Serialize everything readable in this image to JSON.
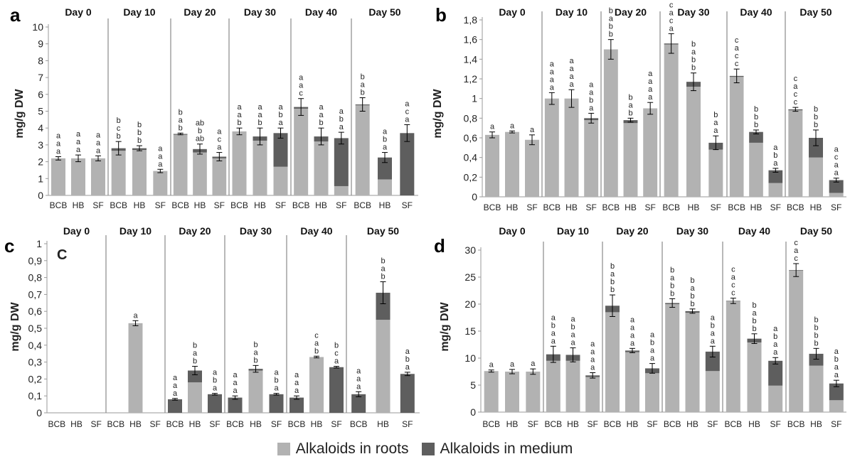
{
  "colors": {
    "roots": "#b2b2b2",
    "medium": "#5e5e5e",
    "axis": "#9a9a9a",
    "divider": "#8a8a8a"
  },
  "legend": {
    "roots_label": "Alkaloids in roots",
    "medium_label": "Alkaloids in medium"
  },
  "chart_data": [
    {
      "type": "bar",
      "stacked": true,
      "panel_label": "a",
      "title": "",
      "ylabel": "mg/g DW",
      "ylim": [
        0,
        10
      ],
      "yticks": [
        "0",
        "1",
        "2",
        "3",
        "4",
        "5",
        "6",
        "7",
        "8",
        "9",
        "10"
      ],
      "days": [
        "Day 0",
        "Day 10",
        "Day 20",
        "Day 30",
        "Day 40",
        "Day 50"
      ],
      "categories": [
        "BCB",
        "HB",
        "SF"
      ],
      "series": [
        {
          "name": "Alkaloids in roots",
          "values": [
            [
              2.2,
              2.2,
              2.2
            ],
            [
              2.65,
              2.7,
              1.45
            ],
            [
              3.6,
              2.55,
              2.2
            ],
            [
              3.8,
              3.25,
              1.7
            ],
            [
              5.15,
              3.2,
              0.55
            ],
            [
              5.35,
              0.95,
              0
            ]
          ]
        },
        {
          "name": "Alkaloids in medium",
          "values": [
            [
              0,
              0,
              0
            ],
            [
              0.15,
              0.1,
              0
            ],
            [
              0.05,
              0.2,
              0.1
            ],
            [
              0,
              0.25,
              2.0
            ],
            [
              0.1,
              0.3,
              2.85
            ],
            [
              0.05,
              1.3,
              3.7
            ]
          ]
        }
      ],
      "errors": [
        [
          0.1,
          0.2,
          0.15
        ],
        [
          0.4,
          0.15,
          0.1
        ],
        [
          0.05,
          0.3,
          0.25
        ],
        [
          0.2,
          0.5,
          0.3
        ],
        [
          0.5,
          0.5,
          0.35
        ],
        [
          0.4,
          0.3,
          0.5
        ]
      ],
      "letters": [
        [
          [
            "a",
            "a",
            "a"
          ],
          [
            "a",
            "a",
            "a"
          ],
          [
            "a",
            "a",
            "a"
          ]
        ],
        [
          [
            "b",
            "c",
            "b"
          ],
          [
            "b",
            "b",
            "b"
          ],
          [
            "a",
            "a",
            "a"
          ]
        ],
        [
          [
            "b",
            "a",
            "b"
          ],
          [
            "ab",
            "b",
            "ab"
          ],
          [
            "a",
            "c",
            "a"
          ]
        ],
        [
          [
            "a",
            "a",
            "b"
          ],
          [
            "a",
            "a",
            "b"
          ],
          [
            "a",
            "b",
            "a"
          ]
        ],
        [
          [
            "a",
            "a",
            "c"
          ],
          [
            "a",
            "a",
            "b"
          ],
          [
            "a",
            "b",
            "a"
          ]
        ],
        [
          [
            "b",
            "a",
            "b"
          ],
          [
            "a",
            "b",
            "a"
          ],
          [
            "a",
            "c",
            "a"
          ]
        ]
      ]
    },
    {
      "type": "bar",
      "stacked": true,
      "panel_label": "b",
      "title": "",
      "ylabel": "mg/g DW",
      "ylim": [
        0,
        1.8
      ],
      "yticks": [
        "0",
        "0,2",
        "0,4",
        "0,6",
        "0,8",
        "1",
        "1,2",
        "1,4",
        "1,6",
        "1,8"
      ],
      "days": [
        "Day 0",
        "Day 10",
        "Day 20",
        "Day 30",
        "Day 40",
        "Day 50"
      ],
      "categories": [
        "BCB",
        "HB",
        "SF"
      ],
      "series": [
        {
          "name": "Alkaloids in roots",
          "values": [
            [
              0.63,
              0.66,
              0.58
            ],
            [
              1.0,
              1.0,
              0.78
            ],
            [
              1.5,
              0.75,
              0.9
            ],
            [
              1.55,
              1.12,
              0.48
            ],
            [
              1.22,
              0.55,
              0.14
            ],
            [
              0.88,
              0.4,
              0.04
            ]
          ]
        },
        {
          "name": "Alkaloids in medium",
          "values": [
            [
              0,
              0,
              0
            ],
            [
              0,
              0,
              0.02
            ],
            [
              0,
              0.03,
              0
            ],
            [
              0.01,
              0.05,
              0.07
            ],
            [
              0.01,
              0.11,
              0.13
            ],
            [
              0.01,
              0.2,
              0.13
            ]
          ]
        }
      ],
      "errors": [
        [
          0.03,
          0.01,
          0.05
        ],
        [
          0.06,
          0.09,
          0.05
        ],
        [
          0.1,
          0.02,
          0.06
        ],
        [
          0.1,
          0.09,
          0.07
        ],
        [
          0.07,
          0.02,
          0.02
        ],
        [
          0.02,
          0.08,
          0.02
        ]
      ],
      "letters": [
        [
          [
            "a"
          ],
          [
            "a"
          ],
          [
            "a"
          ]
        ],
        [
          [
            "a",
            "a",
            "a",
            "a"
          ],
          [
            "a",
            "a",
            "a",
            "a"
          ],
          [
            "a",
            "a",
            "b",
            "a"
          ]
        ],
        [
          [
            "b",
            "a",
            "b",
            "b"
          ],
          [
            "b",
            "a",
            "b"
          ],
          [
            "a",
            "a",
            "a",
            "a"
          ]
        ],
        [
          [
            "c",
            "a",
            "c",
            "a"
          ],
          [
            "b",
            "a",
            "b",
            "b"
          ],
          [
            "b",
            "a",
            "a"
          ]
        ],
        [
          [
            "c",
            "a",
            "c",
            "c"
          ],
          [
            "b",
            "b",
            "b"
          ],
          [
            "a",
            "b",
            "a"
          ]
        ],
        [
          [
            "c",
            "a",
            "c",
            "c"
          ],
          [
            "b",
            "b",
            "b"
          ],
          [
            "a",
            "c",
            "a",
            "a"
          ]
        ]
      ]
    },
    {
      "type": "bar",
      "stacked": true,
      "panel_label": "c",
      "panel_inner_label": "C",
      "title": "",
      "ylabel": "mg/g DW",
      "ylim": [
        0,
        1
      ],
      "yticks": [
        "0",
        "0,1",
        "0,2",
        "0,3",
        "0,4",
        "0,5",
        "0,6",
        "0,7",
        "0,8",
        "0,9",
        "1"
      ],
      "days": [
        "Day 0",
        "Day 10",
        "Day 20",
        "Day 30",
        "Day 40",
        "Day 50"
      ],
      "categories": [
        "BCB",
        "HB",
        "SF"
      ],
      "series": [
        {
          "name": "Alkaloids in roots",
          "values": [
            [
              0,
              0,
              0
            ],
            [
              0,
              0.53,
              0
            ],
            [
              0,
              0.18,
              0
            ],
            [
              0,
              0.25,
              0
            ],
            [
              0,
              0.33,
              0
            ],
            [
              0,
              0.55,
              0
            ]
          ]
        },
        {
          "name": "Alkaloids in medium",
          "values": [
            [
              0,
              0,
              0
            ],
            [
              0,
              0,
              0
            ],
            [
              0.08,
              0.07,
              0.11
            ],
            [
              0.09,
              0.01,
              0.11
            ],
            [
              0.09,
              0,
              0.27
            ],
            [
              0.11,
              0.16,
              0.23
            ]
          ]
        }
      ],
      "errors": [
        [
          0,
          0,
          0
        ],
        [
          0,
          0.015,
          0
        ],
        [
          0.005,
          0.025,
          0.005
        ],
        [
          0.01,
          0.02,
          0.005
        ],
        [
          0.01,
          0.005,
          0.005
        ],
        [
          0.015,
          0.065,
          0.01
        ]
      ],
      "letters": [
        [
          [],
          [],
          []
        ],
        [
          [],
          [
            "a"
          ],
          []
        ],
        [
          [
            "a",
            "a",
            "a"
          ],
          [
            "b",
            "a",
            "b"
          ],
          [
            "a",
            "b",
            "a"
          ]
        ],
        [
          [
            "a",
            "a",
            "a"
          ],
          [
            "b",
            "a",
            "b"
          ],
          [
            "a",
            "b",
            "a"
          ]
        ],
        [
          [
            "a",
            "a",
            "a"
          ],
          [
            "c",
            "a",
            "b"
          ],
          [
            "b",
            "c",
            "a"
          ]
        ],
        [
          [
            "a",
            "a",
            "a"
          ],
          [
            "b",
            "a",
            "b"
          ],
          [
            "a",
            "b",
            "a"
          ]
        ]
      ]
    },
    {
      "type": "bar",
      "stacked": true,
      "panel_label": "d",
      "title": "",
      "ylabel": "mg/g DW",
      "ylim": [
        0,
        30
      ],
      "yticks": [
        "0",
        "5",
        "10",
        "15",
        "20",
        "25",
        "30"
      ],
      "days": [
        "Day 0",
        "Day 10",
        "Day 20",
        "Day 30",
        "Day 40",
        "Day 50"
      ],
      "categories": [
        "BCB",
        "HB",
        "SF"
      ],
      "series": [
        {
          "name": "Alkaloids in roots",
          "values": [
            [
              7.6,
              7.5,
              7.5
            ],
            [
              9.5,
              9.5,
              6.5
            ],
            [
              18.5,
              11.1,
              7.2
            ],
            [
              20.0,
              18.4,
              7.6
            ],
            [
              20.5,
              12.9,
              4.9
            ],
            [
              26.2,
              8.6,
              2.2
            ]
          ]
        },
        {
          "name": "Alkaloids in medium",
          "values": [
            [
              0,
              0,
              0
            ],
            [
              1.2,
              1.1,
              0.3
            ],
            [
              1.2,
              0.3,
              0.9
            ],
            [
              0.2,
              0.3,
              3.6
            ],
            [
              0.1,
              0.7,
              4.6
            ],
            [
              0.1,
              2.2,
              3.1
            ]
          ]
        }
      ],
      "errors": [
        [
          0.2,
          0.4,
          0.5
        ],
        [
          1.5,
          1.3,
          0.5
        ],
        [
          2.0,
          0.4,
          0.9
        ],
        [
          0.8,
          0.4,
          1.0
        ],
        [
          0.5,
          0.9,
          0.6
        ],
        [
          1.2,
          1.0,
          0.6
        ]
      ],
      "letters": [
        [
          [
            "a"
          ],
          [
            "a"
          ],
          [
            "a"
          ]
        ],
        [
          [
            "a",
            "b",
            "a",
            "a"
          ],
          [
            "a",
            "b",
            "a",
            "a"
          ],
          [
            "a",
            "a",
            "a",
            "a"
          ]
        ],
        [
          [
            "b",
            "a",
            "b",
            "b"
          ],
          [
            "a",
            "a",
            "a",
            "a"
          ],
          [
            "a",
            "b",
            "a",
            "a"
          ]
        ],
        [
          [
            "b",
            "a",
            "b",
            "b"
          ],
          [
            "b",
            "a",
            "b",
            "b"
          ],
          [
            "a",
            "b",
            "a",
            "a"
          ]
        ],
        [
          [
            "c",
            "a",
            "c",
            "c"
          ],
          [
            "b",
            "a",
            "b",
            "b"
          ],
          [
            "a",
            "b",
            "a",
            "a"
          ]
        ],
        [
          [
            "c",
            "a",
            "c"
          ],
          [
            "b",
            "b",
            "b",
            "b"
          ],
          [
            "a",
            "b",
            "a",
            "a"
          ]
        ]
      ]
    }
  ]
}
